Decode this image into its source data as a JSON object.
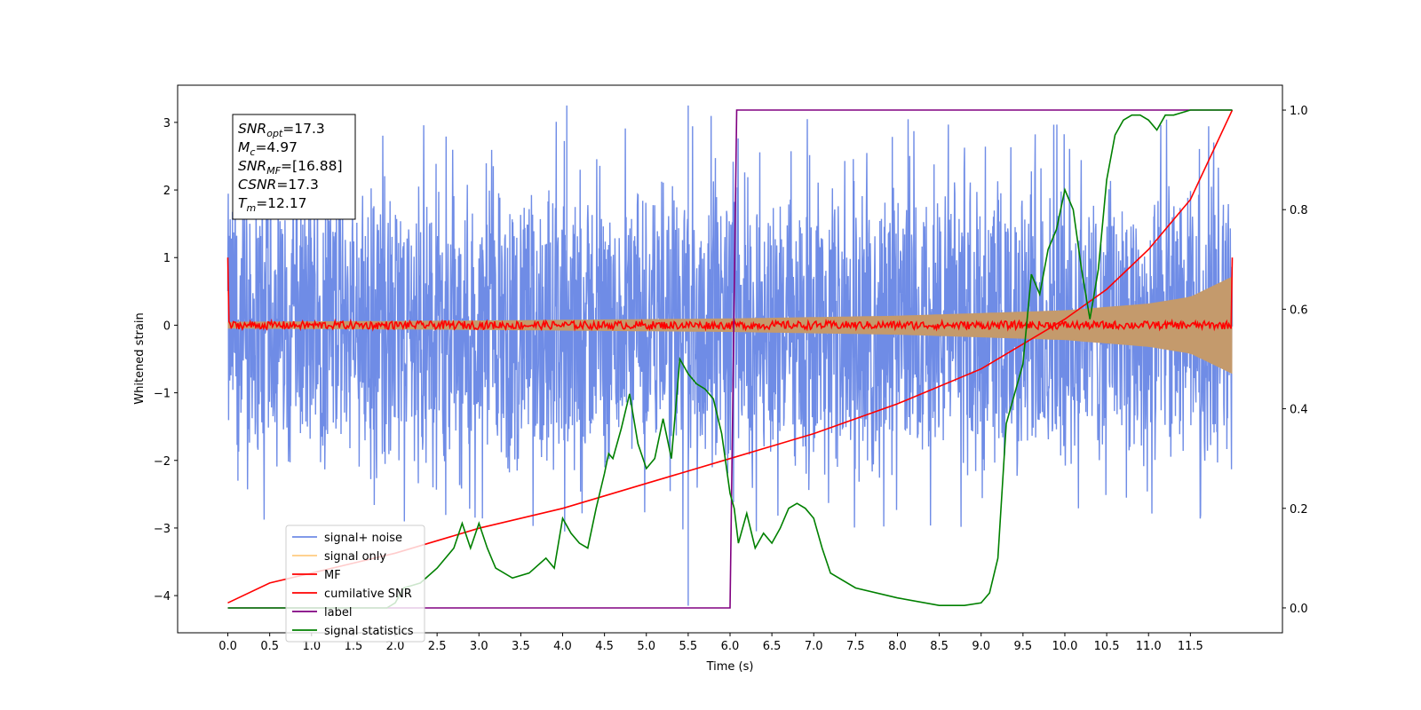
{
  "chart_data": {
    "type": "line",
    "xlabel": "Time (s)",
    "ylabel": "Whitened strain",
    "xlim": [
      -0.6,
      12.6
    ],
    "ylim_left": [
      -4.55,
      3.55
    ],
    "ylim_right": [
      -0.05,
      1.05
    ],
    "x_ticks": [
      0.0,
      0.5,
      1.0,
      1.5,
      2.0,
      2.5,
      3.0,
      3.5,
      4.0,
      4.5,
      5.0,
      5.5,
      6.0,
      6.5,
      7.0,
      7.5,
      8.0,
      8.5,
      9.0,
      9.5,
      10.0,
      10.5,
      11.0,
      11.5
    ],
    "x_tick_labels": [
      "0.0",
      "0.5",
      "1.0",
      "1.5",
      "2.0",
      "2.5",
      "3.0",
      "3.5",
      "4.0",
      "4.5",
      "5.0",
      "5.5",
      "6.0",
      "6.5",
      "7.0",
      "7.5",
      "8.0",
      "8.5",
      "9.0",
      "9.5",
      "10.0",
      "10.5",
      "11.0",
      "11.5"
    ],
    "y_left_ticks": [
      3,
      2,
      1,
      0,
      -1,
      -2,
      -3,
      -4
    ],
    "y_left_tick_labels": [
      "3",
      "2",
      "1",
      "0",
      "−1",
      "−2",
      "−3",
      "−4"
    ],
    "y_right_ticks": [
      1.0,
      0.8,
      0.6,
      0.4,
      0.2,
      0.0
    ],
    "y_right_tick_labels": [
      "1.0",
      "0.8",
      "0.6",
      "0.4",
      "0.2",
      "0.0"
    ],
    "grid": false,
    "legend_position": "lower-left",
    "info_box": {
      "position": "top-left",
      "lines": [
        {
          "base": "SNR",
          "sub": "opt",
          "value": "=17.3"
        },
        {
          "base": "M",
          "sub": "c",
          "value": "=4.97"
        },
        {
          "base": "SNR",
          "sub": "MF",
          "value": "=[16.88]"
        },
        {
          "base": "CSNR",
          "sub": "",
          "value": "=17.3"
        },
        {
          "base": "T",
          "sub": "m",
          "value": "=12.17"
        }
      ]
    },
    "series": [
      {
        "name": "signal+ noise",
        "axis": "left",
        "color": "#6f8ce6",
        "kind": "noise-band",
        "x_range": [
          0.0,
          12.0
        ],
        "typical_amplitude": 1.5,
        "max": 3.25,
        "min": -4.15,
        "notable_spikes": [
          [
            0.12,
            -2.3
          ],
          [
            5.5,
            3.25
          ],
          [
            5.5,
            -4.15
          ],
          [
            4.05,
            3.25
          ]
        ]
      },
      {
        "name": "signal only",
        "axis": "left",
        "color": "#c49a6c",
        "kind": "envelope",
        "x": [
          0.0,
          3.0,
          6.0,
          8.0,
          10.0,
          11.0,
          11.5,
          12.0
        ],
        "upper": [
          0.05,
          0.07,
          0.1,
          0.14,
          0.22,
          0.32,
          0.42,
          0.72
        ],
        "lower": [
          -0.05,
          -0.07,
          -0.1,
          -0.14,
          -0.22,
          -0.32,
          -0.42,
          -0.72
        ]
      },
      {
        "name": "MF",
        "axis": "left",
        "color": "#ff0000",
        "kind": "noisy-flat",
        "x_range": [
          0.0,
          12.0
        ],
        "level": 0.0,
        "noise": 0.06,
        "endpoints": [
          [
            0.0,
            1.0
          ],
          [
            12.0,
            1.0
          ]
        ]
      },
      {
        "name": "cumilative SNR",
        "axis": "right",
        "color": "#ff0000",
        "x": [
          0.0,
          0.5,
          1.0,
          1.5,
          2.0,
          3.0,
          4.0,
          5.0,
          6.0,
          7.0,
          8.0,
          9.0,
          10.0,
          10.5,
          11.0,
          11.5,
          12.0
        ],
        "y": [
          0.01,
          0.05,
          0.07,
          0.09,
          0.11,
          0.16,
          0.2,
          0.25,
          0.3,
          0.35,
          0.41,
          0.48,
          0.58,
          0.64,
          0.72,
          0.82,
          1.0
        ]
      },
      {
        "name": "label",
        "axis": "right",
        "color": "#800080",
        "x": [
          0.0,
          6.0,
          6.08,
          12.0
        ],
        "y": [
          0.0,
          0.0,
          1.0,
          1.0
        ]
      },
      {
        "name": "signal statistics",
        "axis": "right",
        "color": "#008000",
        "x": [
          0.0,
          0.5,
          1.0,
          1.5,
          1.9,
          2.0,
          2.1,
          2.3,
          2.5,
          2.7,
          2.8,
          2.9,
          3.0,
          3.1,
          3.2,
          3.4,
          3.6,
          3.8,
          3.9,
          4.0,
          4.1,
          4.2,
          4.3,
          4.4,
          4.5,
          4.55,
          4.6,
          4.7,
          4.8,
          4.9,
          5.0,
          5.1,
          5.2,
          5.3,
          5.4,
          5.5,
          5.6,
          5.7,
          5.8,
          5.9,
          6.0,
          6.05,
          6.1,
          6.2,
          6.3,
          6.4,
          6.5,
          6.6,
          6.7,
          6.8,
          6.9,
          7.0,
          7.1,
          7.2,
          7.5,
          8.0,
          8.5,
          8.8,
          9.0,
          9.1,
          9.2,
          9.3,
          9.4,
          9.5,
          9.6,
          9.7,
          9.8,
          9.9,
          10.0,
          10.1,
          10.2,
          10.3,
          10.4,
          10.5,
          10.6,
          10.7,
          10.8,
          10.9,
          11.0,
          11.1,
          11.2,
          11.3,
          11.5,
          11.7,
          11.9,
          12.0
        ],
        "y": [
          0.0,
          0.0,
          0.0,
          0.0,
          0.0,
          0.01,
          0.04,
          0.05,
          0.08,
          0.12,
          0.17,
          0.12,
          0.17,
          0.12,
          0.08,
          0.06,
          0.07,
          0.1,
          0.08,
          0.18,
          0.15,
          0.13,
          0.12,
          0.2,
          0.27,
          0.31,
          0.3,
          0.36,
          0.43,
          0.33,
          0.28,
          0.3,
          0.38,
          0.3,
          0.5,
          0.47,
          0.45,
          0.44,
          0.42,
          0.35,
          0.23,
          0.2,
          0.13,
          0.19,
          0.12,
          0.15,
          0.13,
          0.16,
          0.2,
          0.21,
          0.2,
          0.18,
          0.12,
          0.07,
          0.04,
          0.02,
          0.005,
          0.005,
          0.01,
          0.03,
          0.1,
          0.37,
          0.43,
          0.49,
          0.67,
          0.63,
          0.72,
          0.76,
          0.84,
          0.8,
          0.68,
          0.58,
          0.68,
          0.86,
          0.95,
          0.98,
          0.99,
          0.99,
          0.98,
          0.96,
          0.99,
          0.99,
          1.0,
          1.0,
          1.0,
          1.0
        ]
      }
    ]
  }
}
